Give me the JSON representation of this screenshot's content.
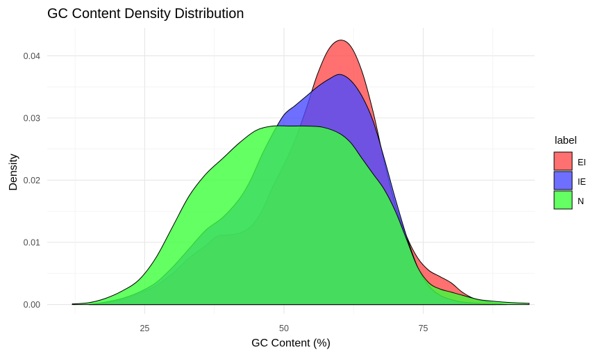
{
  "chart_data": {
    "type": "area",
    "title": "GC Content Density Distribution",
    "xlabel": "GC Content (%)",
    "ylabel": "Density",
    "xlim": [
      7.5,
      95
    ],
    "ylim": [
      -0.0015,
      0.0445
    ],
    "x_ticks": [
      25,
      50,
      75
    ],
    "y_ticks": [
      0.0,
      0.01,
      0.02,
      0.03,
      0.04
    ],
    "x_tick_labels": [
      "25",
      "50",
      "75"
    ],
    "y_tick_labels": [
      "0.00",
      "0.01",
      "0.02",
      "0.03",
      "0.04"
    ],
    "grid": true,
    "legend": {
      "title": "label",
      "position": "right",
      "entries": [
        {
          "name": "EI",
          "color": "#ff4c4c"
        },
        {
          "name": "IE",
          "color": "#4b4bff"
        },
        {
          "name": "N",
          "color": "#3cff3c"
        }
      ]
    },
    "series": [
      {
        "name": "EI",
        "color": "#ff4c4c",
        "fill_opacity": 0.8,
        "points": [
          [
            15,
            0.0
          ],
          [
            18,
            0.0003
          ],
          [
            21,
            0.0008
          ],
          [
            24,
            0.0018
          ],
          [
            27,
            0.003
          ],
          [
            30,
            0.005
          ],
          [
            33,
            0.0075
          ],
          [
            36,
            0.0095
          ],
          [
            38,
            0.011
          ],
          [
            40,
            0.0112
          ],
          [
            42,
            0.0115
          ],
          [
            44,
            0.0125
          ],
          [
            46,
            0.015
          ],
          [
            48,
            0.019
          ],
          [
            50,
            0.0225
          ],
          [
            52,
            0.0265
          ],
          [
            54,
            0.0315
          ],
          [
            56,
            0.037
          ],
          [
            58,
            0.041
          ],
          [
            60,
            0.0425
          ],
          [
            62,
            0.0415
          ],
          [
            64,
            0.0375
          ],
          [
            66,
            0.031
          ],
          [
            68,
            0.023
          ],
          [
            70,
            0.016
          ],
          [
            72,
            0.011
          ],
          [
            74,
            0.0075
          ],
          [
            76,
            0.0055
          ],
          [
            78,
            0.0045
          ],
          [
            80,
            0.0035
          ],
          [
            82,
            0.002
          ],
          [
            84,
            0.001
          ],
          [
            86,
            0.0005
          ],
          [
            88,
            0.0002
          ],
          [
            90,
            0.0
          ]
        ]
      },
      {
        "name": "IE",
        "color": "#4b4bff",
        "fill_opacity": 0.8,
        "points": [
          [
            15,
            0.0
          ],
          [
            18,
            0.0004
          ],
          [
            21,
            0.001
          ],
          [
            24,
            0.002
          ],
          [
            27,
            0.0035
          ],
          [
            30,
            0.006
          ],
          [
            33,
            0.009
          ],
          [
            36,
            0.012
          ],
          [
            39,
            0.014
          ],
          [
            42,
            0.017
          ],
          [
            44,
            0.02
          ],
          [
            46,
            0.024
          ],
          [
            48,
            0.0275
          ],
          [
            50,
            0.0305
          ],
          [
            52,
            0.032
          ],
          [
            54,
            0.0335
          ],
          [
            56,
            0.035
          ],
          [
            58,
            0.0362
          ],
          [
            60,
            0.037
          ],
          [
            62,
            0.036
          ],
          [
            64,
            0.0335
          ],
          [
            66,
            0.0295
          ],
          [
            68,
            0.0235
          ],
          [
            70,
            0.017
          ],
          [
            72,
            0.011
          ],
          [
            74,
            0.006
          ],
          [
            76,
            0.003
          ],
          [
            78,
            0.0015
          ],
          [
            80,
            0.0008
          ],
          [
            82,
            0.0004
          ],
          [
            85,
            0.0002
          ],
          [
            88,
            0.0
          ]
        ]
      },
      {
        "name": "N",
        "color": "#3cff3c",
        "fill_opacity": 0.8,
        "points": [
          [
            12,
            0.0001
          ],
          [
            15,
            0.0003
          ],
          [
            18,
            0.001
          ],
          [
            21,
            0.0022
          ],
          [
            24,
            0.004
          ],
          [
            27,
            0.0075
          ],
          [
            30,
            0.0125
          ],
          [
            33,
            0.0175
          ],
          [
            36,
            0.021
          ],
          [
            39,
            0.0235
          ],
          [
            42,
            0.026
          ],
          [
            45,
            0.028
          ],
          [
            48,
            0.0287
          ],
          [
            51,
            0.0287
          ],
          [
            54,
            0.0287
          ],
          [
            57,
            0.0285
          ],
          [
            60,
            0.0275
          ],
          [
            62,
            0.026
          ],
          [
            64,
            0.0235
          ],
          [
            66,
            0.021
          ],
          [
            68,
            0.0185
          ],
          [
            70,
            0.015
          ],
          [
            72,
            0.0105
          ],
          [
            74,
            0.006
          ],
          [
            76,
            0.0035
          ],
          [
            78,
            0.0025
          ],
          [
            80,
            0.002
          ],
          [
            82,
            0.0015
          ],
          [
            85,
            0.0008
          ],
          [
            88,
            0.0005
          ],
          [
            91,
            0.0003
          ],
          [
            94,
            0.0002
          ]
        ]
      }
    ]
  }
}
